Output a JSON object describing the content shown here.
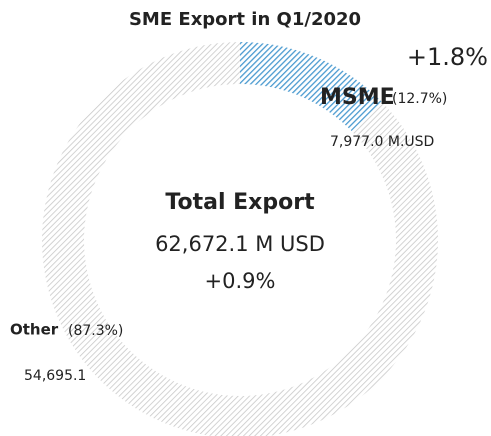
{
  "chart_data": {
    "type": "donut",
    "title": "SME Export in Q1/2020",
    "categories": [
      "MSME",
      "Other"
    ],
    "values": [
      12.7,
      87.3
    ],
    "value_labels": [
      "(12.7%)",
      "(87.3%)"
    ],
    "amount_labels": [
      "7,977.0 M.USD",
      "54,695.1"
    ],
    "colors": [
      "#4a9ad0",
      "#c8c8c8"
    ],
    "annotation": "+1.8%",
    "center_title": "Total Export",
    "center_value": "62,672.1 M USD",
    "center_change": "+0.9%"
  }
}
